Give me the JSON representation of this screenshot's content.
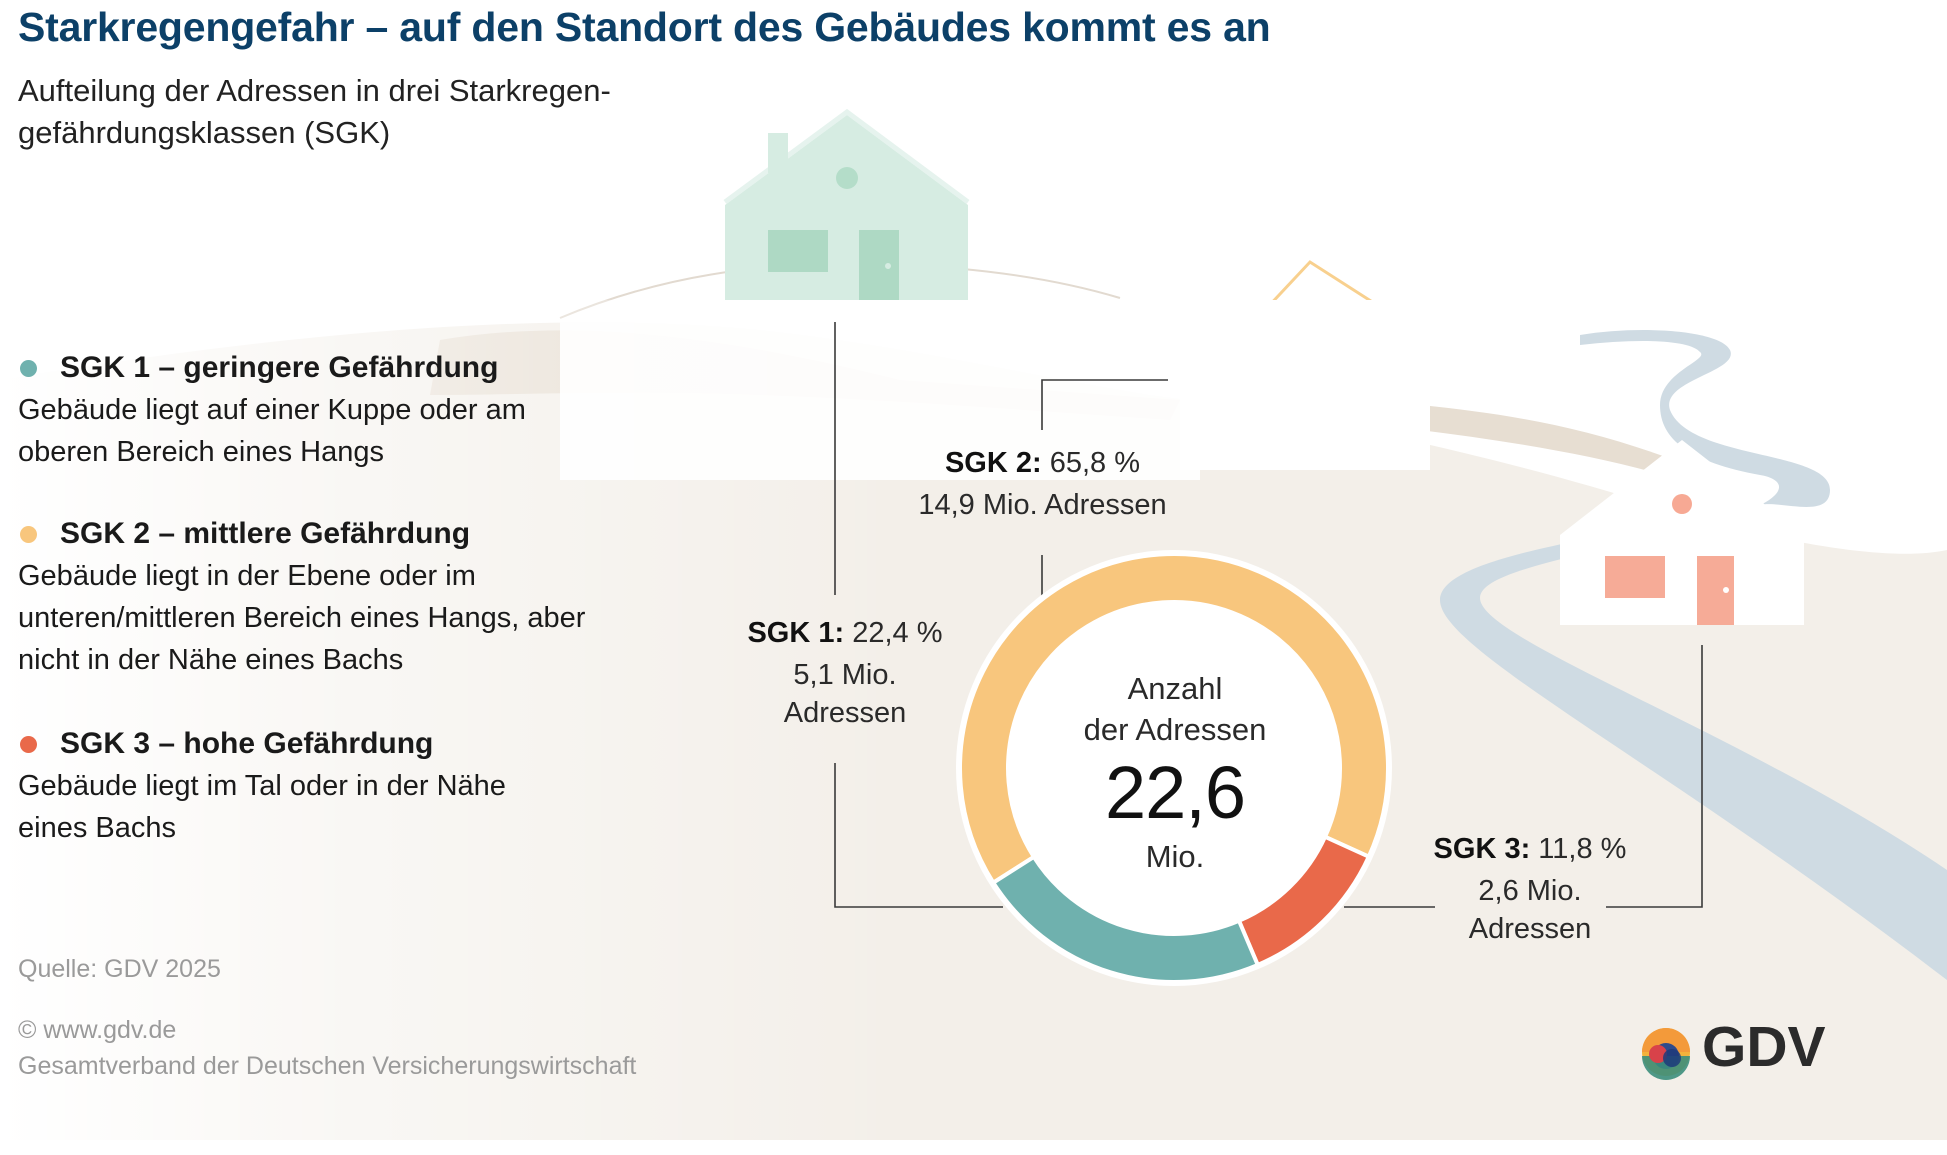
{
  "title": "Starkregengefahr – auf den Standort des Gebäudes kommt es an",
  "subtitle": "Aufteilung der Adressen in drei Starkregen-gefährdungsklassen (SGK)",
  "legend": [
    {
      "heading": "SGK 1 – geringere Gefährdung",
      "description": "Gebäude liegt auf einer Kuppe oder am oberen Bereich eines Hangs",
      "color": "#6fb1ae"
    },
    {
      "heading": "SGK 2 – mittlere Gefährdung",
      "description": "Gebäude liegt in der Ebene oder im unteren/mittleren Bereich eines Hangs, aber nicht in der Nähe eines Bachs",
      "color": "#f8c67d"
    },
    {
      "heading": "SGK 3 – hohe Gefährdung",
      "description": "Gebäude liegt im Tal oder in der Nähe eines Bachs",
      "color": "#e9694a"
    }
  ],
  "chart_data": {
    "type": "pie",
    "donut": true,
    "categories": [
      "SGK 1",
      "SGK 2",
      "SGK 3"
    ],
    "values": [
      22.4,
      65.8,
      11.8
    ],
    "unit": "%",
    "colors": [
      "#6fb1ae",
      "#f8c67d",
      "#e9694a"
    ],
    "labels": [
      {
        "name": "SGK 1:",
        "percent": "22,4 %",
        "line1": "5,1 Mio.",
        "line2": "Adressen"
      },
      {
        "name": "SGK 2:",
        "percent": "65,8 %",
        "line1": "14,9 Mio. Adressen",
        "line2": ""
      },
      {
        "name": "SGK 3:",
        "percent": "11,8 %",
        "line1": "2,6 Mio.",
        "line2": "Adressen"
      }
    ],
    "center": {
      "line1": "Anzahl",
      "line2": "der Adressen",
      "value": "22,6",
      "unit": "Mio."
    }
  },
  "source": "Quelle: GDV 2025",
  "copyright": {
    "line1": "© www.gdv.de",
    "line2": "Gesamtverband der Deutschen Versicherungswirtschaft"
  },
  "logo_text": "GDV"
}
